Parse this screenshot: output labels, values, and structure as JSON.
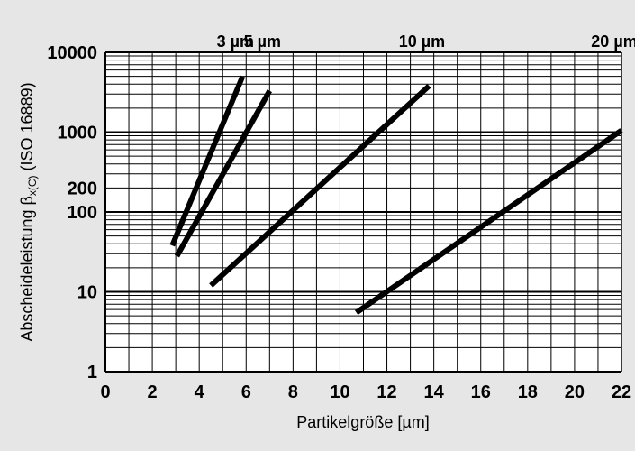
{
  "chart_data": {
    "type": "line",
    "title": "",
    "xlabel": "Partikelgröße [µm]",
    "ylabel": {
      "prefix": "Abscheideleistung β",
      "subscript": "x(C)",
      "suffix": " (ISO 16889)"
    },
    "xlim": [
      0,
      22
    ],
    "ylim": [
      1,
      10000
    ],
    "yscale": "log",
    "x_ticks": [
      "0",
      "2",
      "4",
      "6",
      "8",
      "10",
      "12",
      "14",
      "16",
      "18",
      "20",
      "22"
    ],
    "y_ticks": [
      "1",
      "10",
      "100",
      "200",
      "1000",
      "10000"
    ],
    "grid": true,
    "series": [
      {
        "name": "3 µm",
        "x": [
          2.85,
          5.85
        ],
        "y": [
          38,
          5000
        ]
      },
      {
        "name": "5 µm",
        "x": [
          3.05,
          7.0
        ],
        "y": [
          28,
          3300
        ]
      },
      {
        "name": "10 µm",
        "x": [
          4.5,
          13.8
        ],
        "y": [
          12,
          3800
        ]
      },
      {
        "name": "20 µm",
        "x": [
          10.7,
          22.0
        ],
        "y": [
          5.5,
          1050
        ]
      }
    ]
  }
}
